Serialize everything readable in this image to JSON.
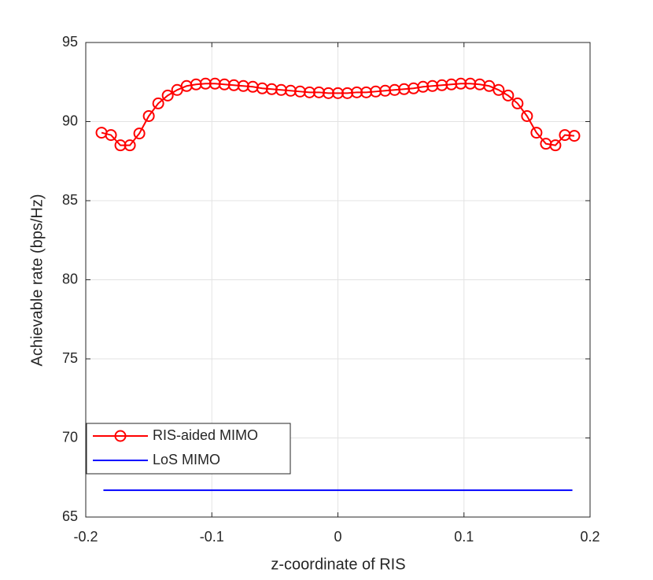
{
  "chart_data": {
    "type": "line",
    "xlabel": "z-coordinate of RIS",
    "ylabel": "Achievable rate (bps/Hz)",
    "xlim": [
      -0.2,
      0.2
    ],
    "xticks": [
      -0.2,
      -0.1,
      0,
      0.1,
      0.2
    ],
    "ylim": [
      65,
      95
    ],
    "yticks": [
      65,
      70,
      75,
      80,
      85,
      90,
      95
    ],
    "grid": true,
    "legend": "lower left",
    "series": [
      {
        "name": "RIS-aided MIMO",
        "color": "#ff0000",
        "marker": "circle",
        "x": [
          -0.1875,
          -0.18,
          -0.1725,
          -0.165,
          -0.1575,
          -0.15,
          -0.1425,
          -0.135,
          -0.1275,
          -0.12,
          -0.1125,
          -0.105,
          -0.0975,
          -0.09,
          -0.0825,
          -0.075,
          -0.0675,
          -0.06,
          -0.0525,
          -0.045,
          -0.0375,
          -0.03,
          -0.0225,
          -0.015,
          -0.0075,
          0,
          0.0075,
          0.015,
          0.0225,
          0.03,
          0.0375,
          0.045,
          0.0525,
          0.06,
          0.0675,
          0.075,
          0.0825,
          0.09,
          0.0975,
          0.105,
          0.1125,
          0.12,
          0.1275,
          0.135,
          0.1425,
          0.15,
          0.1575,
          0.165,
          0.1725,
          0.18,
          0.1875
        ],
        "values": [
          89.3,
          89.15,
          88.5,
          88.5,
          89.25,
          90.35,
          91.15,
          91.65,
          92.0,
          92.25,
          92.35,
          92.4,
          92.4,
          92.35,
          92.3,
          92.25,
          92.2,
          92.1,
          92.05,
          92.0,
          91.95,
          91.9,
          91.85,
          91.85,
          91.8,
          91.8,
          91.8,
          91.85,
          91.85,
          91.9,
          91.95,
          92.0,
          92.05,
          92.1,
          92.2,
          92.25,
          92.3,
          92.35,
          92.4,
          92.4,
          92.35,
          92.25,
          92.0,
          91.65,
          91.15,
          90.35,
          89.3,
          88.6,
          88.5,
          89.15,
          89.1
        ]
      },
      {
        "name": "LoS MIMO",
        "color": "#0000ff",
        "x": [
          -0.186,
          0.186
        ],
        "values": [
          66.7,
          66.7
        ]
      }
    ]
  }
}
